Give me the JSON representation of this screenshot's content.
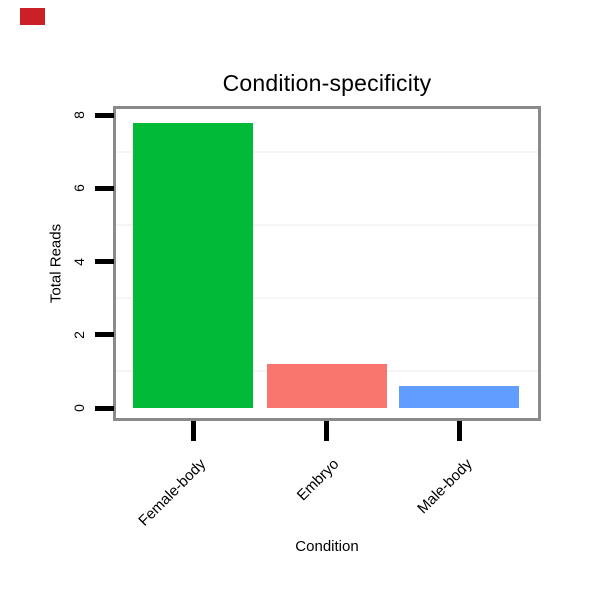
{
  "window": {
    "background": "#FFFFFF"
  },
  "marker": {
    "color": "#CB2026"
  },
  "chart_data": {
    "type": "bar",
    "title": "Condition-specificity",
    "xlabel": "Condition",
    "ylabel": "Total Reads",
    "categories": [
      "Female-body",
      "Embryo",
      "Male-body"
    ],
    "values": [
      7.8,
      1.2,
      0.6
    ],
    "bar_colors": [
      "#00BA38",
      "#F8766D",
      "#619CFF"
    ],
    "y_ticks": [
      0,
      2,
      4,
      6,
      8
    ],
    "minor_gridline_values": [
      1,
      3,
      5,
      7
    ],
    "ylim": [
      0,
      8.6
    ],
    "grid": "faint horizontal minor gridlines only",
    "legend_position": "none",
    "styles": {
      "panel_border": "#8A8A8A",
      "tick_color": "#000000",
      "gridline_color": "#F5F5F5",
      "text_color": "#000000",
      "plot_background": "#FFFFFF"
    }
  }
}
